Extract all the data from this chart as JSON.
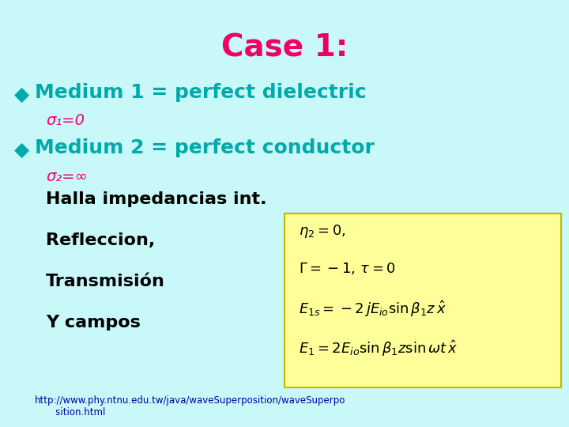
{
  "background_color": "#c8f8f8",
  "title": "Case 1:",
  "title_color": "#ee0066",
  "title_fontsize": 28,
  "bullet_color": "#00aaaa",
  "bullet1_text": "Medium 1 = perfect dielectric",
  "bullet2_text": "Medium 2 = perfect conductor",
  "sigma1_text": "σ₁=0",
  "sigma2_text": "σ₂=∞",
  "sigma_color": "#ee0077",
  "body_text_color": "#000000",
  "body_lines": [
    "Halla impedancias int.",
    "Refleccion,",
    "Transmisión",
    "Y campos"
  ],
  "box_color": "#ffff99",
  "eq1": "$\\eta_2 = 0,$",
  "eq2": "$\\Gamma = -1,\\, \\tau = 0$",
  "eq3": "$E_{1s} = -2\\,j E_{io}\\sin\\beta_1 z\\,\\hat{x}$",
  "eq4": "$E_1 = 2 E_{io}\\sin\\beta_1 z\\sin\\omega t\\,\\hat{x}$",
  "link_text": "http://www.phy.ntnu.edu.tw/java/waveSuperposition/waveSuperpo\n       sition.html",
  "link_color": "#0000aa",
  "bullet_symbol": "◆"
}
